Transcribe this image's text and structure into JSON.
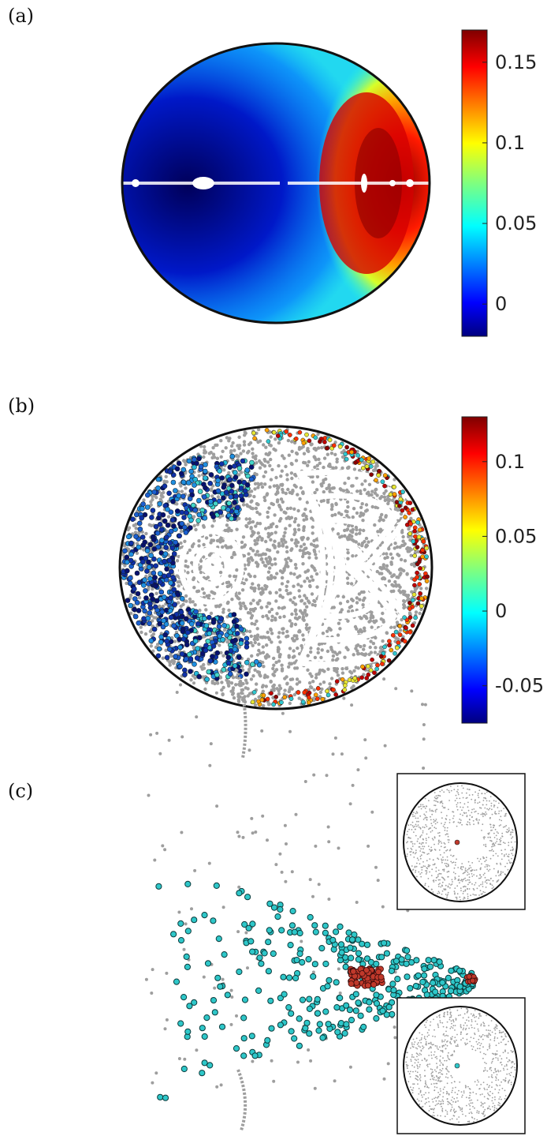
{
  "figure": {
    "panels": [
      {
        "id": "a",
        "label": "(a)"
      },
      {
        "id": "b",
        "label": "(b)"
      },
      {
        "id": "c",
        "label": "(c)"
      }
    ]
  },
  "colorbars": {
    "a": {
      "colormap": "jet",
      "range": [
        -0.02,
        0.17
      ],
      "ticks": [
        "0.15",
        "0.1",
        "0.05",
        "0"
      ],
      "tick_values": [
        0.15,
        0.1,
        0.05,
        0
      ]
    },
    "b": {
      "colormap": "jet",
      "range": [
        -0.075,
        0.13
      ],
      "ticks": [
        "0.1",
        "0.05",
        "0",
        "-0.05"
      ],
      "tick_values": [
        0.1,
        0.05,
        0,
        -0.05
      ]
    }
  },
  "colors": {
    "gray_points": "#9e9e9e",
    "cyan_points": "#2ec7c9",
    "red_points": "#c0392b",
    "boundary": "#111111"
  },
  "chart_data": [
    {
      "type": "heatmap",
      "panel": "a",
      "colormap": "jet",
      "clim": [
        -0.02,
        0.17
      ]
    },
    {
      "type": "scatter",
      "panel": "b",
      "colormap": "jet",
      "clim": [
        -0.075,
        0.13
      ]
    },
    {
      "type": "scatter",
      "panel": "c",
      "series": [
        {
          "color": "#2ec7c9"
        },
        {
          "color": "#c0392b"
        },
        {
          "color": "#9e9e9e"
        }
      ],
      "insets": 2
    }
  ]
}
